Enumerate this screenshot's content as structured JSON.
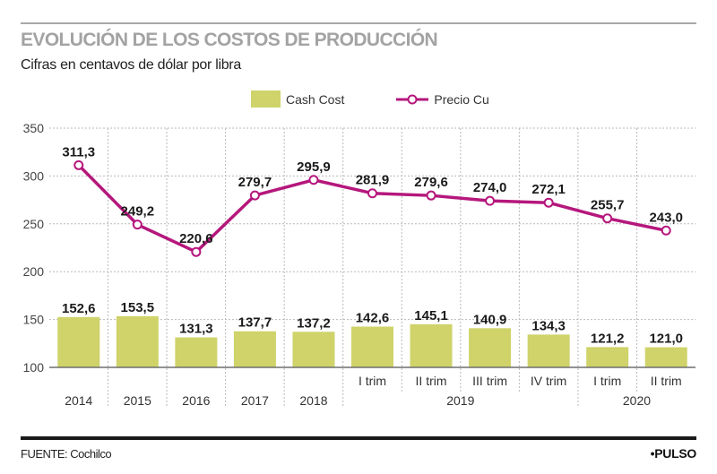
{
  "header": {
    "title": "EVOLUCIÓN DE LOS COSTOS DE PRODUCCIÓN",
    "subtitle": "Cifras en centavos de dólar por libra"
  },
  "legend": {
    "bar_label": "Cash Cost",
    "line_label": "Precio Cu"
  },
  "footer": {
    "source": "FUENTE: Cochilco",
    "brand": "•PULSO"
  },
  "colors": {
    "bar": "#cfd36a",
    "line": "#b5177c",
    "grid": "#b9b9b9",
    "axis": "#6f6f6f",
    "title": "#a3a3a3"
  },
  "chart_data": {
    "type": "bar+line",
    "title": "EVOLUCIÓN DE LOS COSTOS DE PRODUCCIÓN",
    "subtitle": "Cifras en centavos de dólar por libra",
    "xlabel": "",
    "ylabel": "",
    "ylim": [
      100,
      350
    ],
    "yticks": [
      100,
      150,
      200,
      250,
      300,
      350
    ],
    "grid": true,
    "legend_position": "top-center",
    "categories": [
      "2014",
      "2015",
      "2016",
      "2017",
      "2018",
      "I trim",
      "II trim",
      "III trim",
      "IV trim",
      "I trim",
      "II trim"
    ],
    "category_groups": [
      {
        "label": "2019",
        "categories": [
          "I trim",
          "II trim",
          "III trim",
          "IV trim"
        ]
      },
      {
        "label": "2020",
        "categories": [
          "I trim",
          "II trim"
        ]
      }
    ],
    "series": [
      {
        "name": "Cash Cost",
        "type": "bar",
        "values": [
          152.6,
          153.5,
          131.3,
          137.7,
          137.2,
          142.6,
          145.1,
          140.9,
          134.3,
          121.2,
          121.0
        ],
        "labels": [
          "152,6",
          "153,5",
          "131,3",
          "137,7",
          "137,2",
          "142,6",
          "145,1",
          "140,9",
          "134,3",
          "121,2",
          "121,0"
        ]
      },
      {
        "name": "Precio Cu",
        "type": "line",
        "values": [
          311.3,
          249.2,
          220.6,
          279.7,
          295.9,
          281.9,
          279.6,
          274.0,
          272.1,
          255.7,
          243.0
        ],
        "labels": [
          "311,3",
          "249,2",
          "220,6",
          "279,7",
          "295,9",
          "281,9",
          "279,6",
          "274,0",
          "272,1",
          "255,7",
          "243,0"
        ]
      }
    ]
  }
}
